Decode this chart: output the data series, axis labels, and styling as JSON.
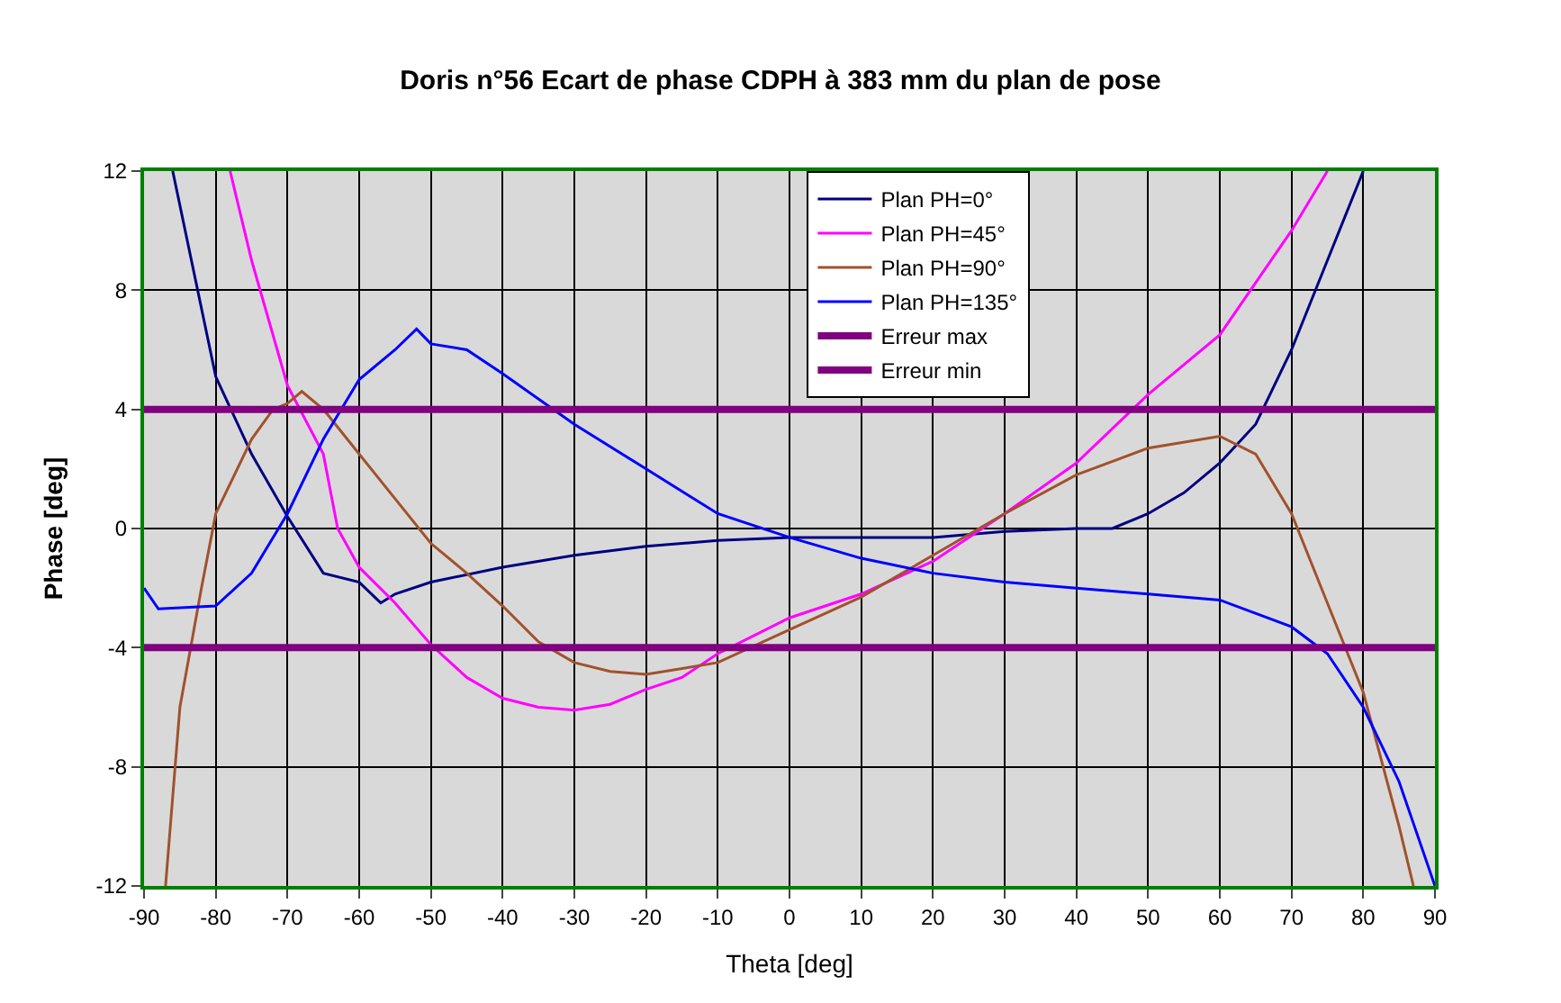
{
  "chart_data": {
    "type": "line",
    "title": "Doris n°56 Ecart de phase CDPH à 383 mm du plan de pose",
    "xlabel": "Theta [deg]",
    "ylabel": "Phase [deg]",
    "xlim": [
      -90,
      90
    ],
    "xticks": [
      -90,
      -80,
      -70,
      -60,
      -50,
      -40,
      -30,
      -20,
      -10,
      0,
      10,
      20,
      30,
      40,
      50,
      60,
      70,
      80,
      90
    ],
    "ylim": [
      -12,
      12
    ],
    "yticks": [
      -12,
      -8,
      -4,
      0,
      4,
      8,
      12
    ],
    "grid": true,
    "legend": "top",
    "marker": "none",
    "line_style": "solid",
    "series": [
      {
        "name": "Plan PH=0°",
        "color": "#000080",
        "x": [
          -86,
          -80,
          -75,
          -70,
          -65,
          -60,
          -57,
          -55,
          -50,
          -40,
          -30,
          -20,
          -10,
          0,
          10,
          20,
          30,
          40,
          45,
          50,
          55,
          60,
          65,
          70,
          75,
          80
        ],
        "values": [
          12,
          5.1,
          2.5,
          0.4,
          -1.5,
          -1.8,
          -2.5,
          -2.2,
          -1.8,
          -1.3,
          -0.9,
          -0.6,
          -0.4,
          -0.3,
          -0.3,
          -0.3,
          -0.1,
          0,
          0,
          0.5,
          1.2,
          2.2,
          3.5,
          6,
          9,
          12
        ]
      },
      {
        "name": "Plan PH=45°",
        "color": "#ff00ff",
        "x": [
          -78,
          -75,
          -70,
          -65,
          -63,
          -60,
          -55,
          -50,
          -45,
          -40,
          -35,
          -30,
          -25,
          -20,
          -15,
          -10,
          -5,
          0,
          10,
          20,
          30,
          40,
          50,
          60,
          70,
          75
        ],
        "values": [
          12,
          9,
          4.8,
          2.5,
          0,
          -1.3,
          -2.5,
          -3.9,
          -5,
          -5.7,
          -6,
          -6.1,
          -5.9,
          -5.4,
          -5,
          -4.2,
          -3.6,
          -3,
          -2.2,
          -1.1,
          0.5,
          2.2,
          4.5,
          6.5,
          10,
          12
        ]
      },
      {
        "name": "Plan PH=90°",
        "color": "#a0522d",
        "x": [
          -87,
          -85,
          -82,
          -80,
          -75,
          -72,
          -70,
          -68,
          -65,
          -60,
          -55,
          -50,
          -45,
          -40,
          -35,
          -30,
          -25,
          -20,
          -10,
          0,
          10,
          20,
          30,
          40,
          50,
          60,
          65,
          70,
          75,
          80,
          85,
          87
        ],
        "values": [
          -12,
          -6,
          -2,
          0.5,
          3,
          4,
          4.2,
          4.6,
          4,
          2.5,
          1,
          -0.5,
          -1.5,
          -2.6,
          -3.8,
          -4.5,
          -4.8,
          -4.9,
          -4.5,
          -3.4,
          -2.3,
          -0.9,
          0.5,
          1.8,
          2.7,
          3.1,
          2.5,
          0.5,
          -2.5,
          -5.5,
          -10,
          -12
        ]
      },
      {
        "name": "Plan PH=135°",
        "color": "#0000ff",
        "x": [
          -90,
          -88,
          -80,
          -75,
          -70,
          -65,
          -60,
          -55,
          -52,
          -50,
          -45,
          -40,
          -30,
          -20,
          -10,
          0,
          10,
          20,
          30,
          40,
          50,
          60,
          70,
          75,
          80,
          85,
          90
        ],
        "values": [
          -2,
          -2.7,
          -2.6,
          -1.5,
          0.5,
          3,
          5,
          6,
          6.7,
          6.2,
          6,
          5.2,
          3.5,
          2,
          0.5,
          -0.3,
          -1,
          -1.5,
          -1.8,
          -2,
          -2.2,
          -2.4,
          -3.3,
          -4.2,
          -6,
          -8.5,
          -12
        ]
      },
      {
        "name": "Erreur max",
        "color": "#800080",
        "x": [
          -90,
          90
        ],
        "values": [
          4,
          4
        ]
      },
      {
        "name": "Erreur min",
        "color": "#800080",
        "x": [
          -90,
          90
        ],
        "values": [
          -4,
          -4
        ]
      }
    ]
  }
}
